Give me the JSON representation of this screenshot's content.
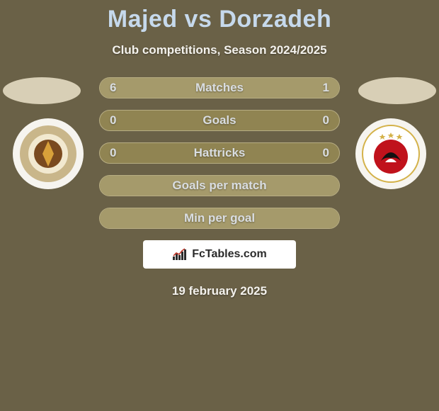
{
  "background_color": "#6a6147",
  "title": {
    "text": "Majed vs Dorzadeh",
    "color": "#c6d9ec",
    "fontsize": 34
  },
  "subtitle": {
    "text": "Club competitions, Season 2024/2025",
    "color": "#f4f2ed",
    "fontsize": 17
  },
  "base_color": "#d8cfb6",
  "badge_bg": "#f6f4ef",
  "club_left": {
    "name": "Umm-Salal",
    "ring_color": "#c9b68a",
    "center_color": "#7a4a1f",
    "text_color": "#5a3416"
  },
  "club_right": {
    "name": "Al Ahly",
    "ring_color": "#e6e6e6",
    "center_color": "#c0121c",
    "text_color": "#111111"
  },
  "bar_style": {
    "track_color": "#908452",
    "border_color": "#b7ad83",
    "fill_left_color": "#a59a6b",
    "fill_right_color": "#a59a6b",
    "label_color": "#d9dde1",
    "value_color": "#d9dde1",
    "height": 30,
    "radius": 15
  },
  "bars": [
    {
      "label": "Matches",
      "left": "6",
      "right": "1",
      "left_share": 0.86,
      "right_share": 0.14
    },
    {
      "label": "Goals",
      "left": "0",
      "right": "0",
      "left_share": 0.0,
      "right_share": 0.0
    },
    {
      "label": "Hattricks",
      "left": "0",
      "right": "0",
      "left_share": 0.0,
      "right_share": 0.0
    },
    {
      "label": "Goals per match",
      "left": "",
      "right": "",
      "left_share": 1.0,
      "right_share": 0.0
    },
    {
      "label": "Min per goal",
      "left": "",
      "right": "",
      "left_share": 1.0,
      "right_share": 0.0
    }
  ],
  "footer": {
    "brand_bg": "#ffffff",
    "brand_text": "FcTables.com",
    "brand_text_color": "#2b2b2b",
    "date": "19 february 2025",
    "date_color": "#f4f2ed"
  }
}
